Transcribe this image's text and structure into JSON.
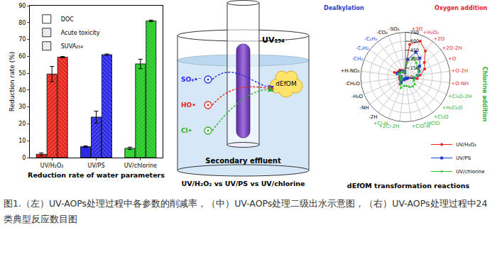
{
  "chart_data": [
    {
      "type": "bar",
      "x_label": "Reduction rate of water parameters",
      "y_label": "Reduction rate (%)",
      "categories": [
        "UV/H₂O₂",
        "UV/PS",
        "UV/chlorine"
      ],
      "colors": [
        "#e8261c",
        "#2a2ae6",
        "#33d633"
      ],
      "series": [
        {
          "name": "DOC",
          "marker": "solid",
          "values": [
            2.0,
            6.5,
            5.5
          ],
          "error": [
            0.8,
            0.5,
            0.7
          ]
        },
        {
          "name": "Acute toxicity",
          "marker": "diagonal",
          "values": [
            49.5,
            24.0,
            55.5
          ],
          "error": [
            4.5,
            3.5,
            2.8
          ]
        },
        {
          "name": "SUVA₂₅₄",
          "marker": "backdiagonal",
          "values": [
            59.5,
            61.0,
            81.0
          ],
          "error": [
            0.4,
            0.4,
            0.5
          ]
        }
      ],
      "ylim": [
        0,
        90
      ],
      "yticks": [
        0,
        10,
        20,
        30,
        40,
        50,
        60,
        70,
        80,
        90
      ],
      "grid": false,
      "legend": "upper left"
    },
    {
      "type": "radar",
      "title": "dEfOM transformation reactions",
      "categories": [
        "-SO₂",
        "+3O",
        "+H₂O₂",
        "+2O",
        "+2O-2H",
        "+O",
        "+O-2H",
        "+O-NH",
        "+Cl₂O-2H",
        "+H₂Cl₂O",
        "+Cl₂O",
        "+HClO",
        "+ClO-H",
        "+2Cl-2H",
        "+Cl-H",
        "-2H",
        "-NH",
        "-H₂O",
        "-CH₂O",
        "+H-NO₂",
        "-CH₂",
        "-C₂H₂",
        "-C₂H₄",
        "-CO₂"
      ],
      "series": [
        {
          "name": "UV/H₂O₂",
          "color": "#e8261c",
          "marker": "circle",
          "values": [
            100,
            550,
            650,
            550,
            400,
            350,
            250,
            200,
            50,
            30,
            30,
            30,
            30,
            30,
            50,
            150,
            100,
            100,
            100,
            80,
            200,
            150,
            150,
            120
          ]
        },
        {
          "name": "UV/PS",
          "color": "#1f3fd0",
          "marker": "square",
          "values": [
            80,
            300,
            450,
            400,
            300,
            250,
            200,
            150,
            40,
            30,
            30,
            30,
            30,
            30,
            40,
            120,
            80,
            80,
            90,
            70,
            150,
            120,
            120,
            100
          ]
        },
        {
          "name": "UV/chlorine",
          "color": "#2fbf2f",
          "marker": "triangle-up",
          "values": [
            80,
            250,
            350,
            300,
            250,
            250,
            200,
            150,
            150,
            200,
            200,
            180,
            150,
            150,
            200,
            150,
            80,
            80,
            90,
            70,
            130,
            110,
            110,
            100
          ]
        }
      ],
      "groups": [
        {
          "text": "Oxygen addition",
          "color": "#e8261c",
          "members": [
            "+3O",
            "+H₂O₂",
            "+2O",
            "+2O-2H",
            "+O",
            "+O-2H",
            "+O-NH"
          ]
        },
        {
          "text": "Chlorine addition",
          "color": "#2fae2f",
          "members": [
            "+Cl₂O-2H",
            "+H₂Cl₂O",
            "+Cl₂O",
            "+HClO",
            "+ClO-H",
            "+2Cl-2H",
            "+Cl-H"
          ]
        },
        {
          "text": "Dealkylation",
          "color": "#2046d0",
          "members": [
            "-CH₂",
            "-C₂H₂",
            "-C₂H₄"
          ]
        }
      ],
      "ylim": [
        0,
        750
      ],
      "yticks": [
        0,
        150,
        300,
        450,
        600,
        750
      ],
      "grid": true,
      "legend": "lower right"
    }
  ],
  "diagram": {
    "title": "UV/H₂O₂ vs UV/PS vs UV/chlorine",
    "lamp_label": "UV₂₅₄",
    "liquid_label": "Secondary effluent",
    "target": "dEfOM",
    "radicals": [
      {
        "label": "SO₄•⁻",
        "color": "#2a2ae6"
      },
      {
        "label": "HO•",
        "color": "#e8261c"
      },
      {
        "label": "Cl•",
        "color": "#2fae2f"
      }
    ]
  },
  "caption": "图1.（左）UV-AOPs处理过程中各参数的削减率，（中）UV-AOPs处理二级出水示意图，（右）UV-AOPs处理过程中24类典型反应数目图"
}
